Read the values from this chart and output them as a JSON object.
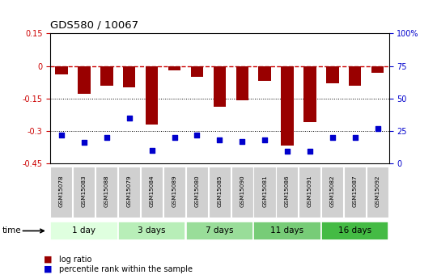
{
  "title": "GDS580 / 10067",
  "samples": [
    "GSM15078",
    "GSM15083",
    "GSM15088",
    "GSM15079",
    "GSM15084",
    "GSM15089",
    "GSM15080",
    "GSM15085",
    "GSM15090",
    "GSM15081",
    "GSM15086",
    "GSM15091",
    "GSM15082",
    "GSM15087",
    "GSM15092"
  ],
  "log_ratio": [
    -0.04,
    -0.13,
    -0.09,
    -0.1,
    -0.27,
    -0.02,
    -0.05,
    -0.19,
    -0.16,
    -0.07,
    -0.37,
    -0.26,
    -0.08,
    -0.09,
    -0.03
  ],
  "percentile": [
    22,
    16,
    20,
    35,
    10,
    20,
    22,
    18,
    17,
    18,
    9,
    9,
    20,
    20,
    27
  ],
  "groups": [
    {
      "label": "1 day",
      "indices": [
        0,
        1,
        2
      ],
      "color": "#dfffdf"
    },
    {
      "label": "3 days",
      "indices": [
        3,
        4,
        5
      ],
      "color": "#b8eeb8"
    },
    {
      "label": "7 days",
      "indices": [
        6,
        7,
        8
      ],
      "color": "#99dd99"
    },
    {
      "label": "11 days",
      "indices": [
        9,
        10,
        11
      ],
      "color": "#77cc77"
    },
    {
      "label": "16 days",
      "indices": [
        12,
        13,
        14
      ],
      "color": "#44bb44"
    }
  ],
  "ylim_left": [
    -0.45,
    0.15
  ],
  "ylim_right": [
    0,
    100
  ],
  "yticks_left": [
    0.15,
    0.0,
    -0.15,
    -0.3,
    -0.45
  ],
  "yticks_left_labels": [
    "0.15",
    "0",
    "-0.15",
    "-0.3",
    "-0.45"
  ],
  "yticks_right": [
    100,
    75,
    50,
    25,
    0
  ],
  "yticks_right_labels": [
    "100%",
    "75",
    "50",
    "25",
    "0"
  ],
  "hlines": [
    -0.15,
    -0.3
  ],
  "bar_color": "#990000",
  "point_color": "#0000cc",
  "ref_line_color": "#cc0000",
  "background_color": "#ffffff",
  "legend_items": [
    {
      "label": "log ratio",
      "color": "#990000"
    },
    {
      "label": "percentile rank within the sample",
      "color": "#0000cc"
    }
  ]
}
